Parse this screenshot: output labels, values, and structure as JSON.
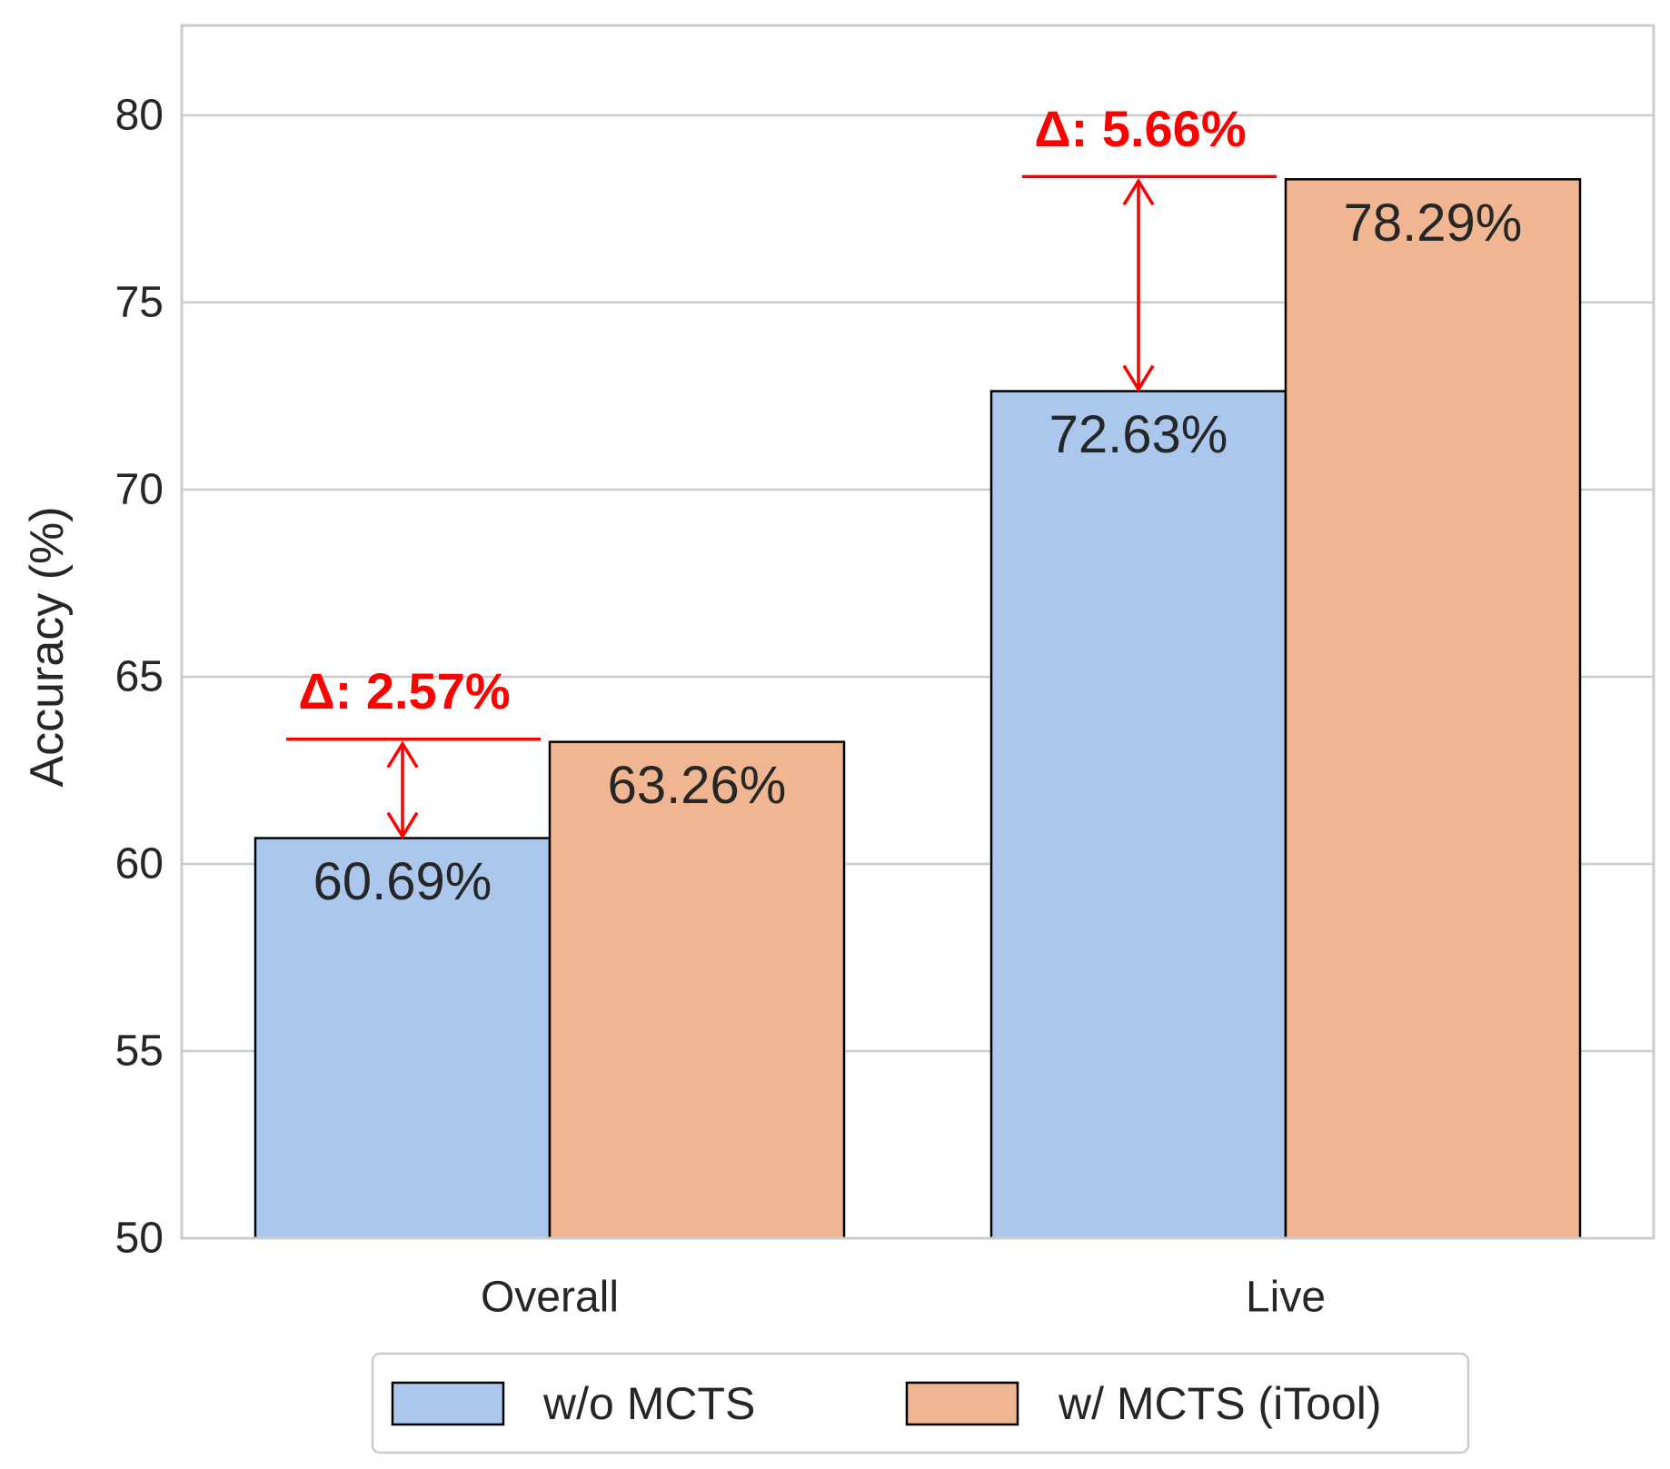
{
  "chart_data": {
    "type": "bar",
    "categories": [
      "Overall",
      "Live"
    ],
    "series": [
      {
        "name": "w/o MCTS",
        "values": [
          60.69,
          72.63
        ],
        "labels": [
          "60.69%",
          "72.63%"
        ],
        "color": "#abc8ec"
      },
      {
        "name": "w/ MCTS (iTool)",
        "values": [
          63.26,
          78.29
        ],
        "labels": [
          "63.26%",
          "78.29%"
        ],
        "color": "#f0b591"
      }
    ],
    "annotations": [
      {
        "category": "Overall",
        "text": "Δ: 2.57%",
        "from": 60.69,
        "to": 63.26
      },
      {
        "category": "Live",
        "text": "Δ: 5.66%",
        "from": 72.63,
        "to": 78.29
      }
    ],
    "ylabel": "Accuracy (%)",
    "xlabel": "",
    "ylim": [
      50,
      82.4
    ],
    "yticks": [
      50,
      55,
      60,
      65,
      70,
      75,
      80
    ],
    "grid": true,
    "legend": "bottom-center",
    "annotation_color": "#ff0000"
  }
}
